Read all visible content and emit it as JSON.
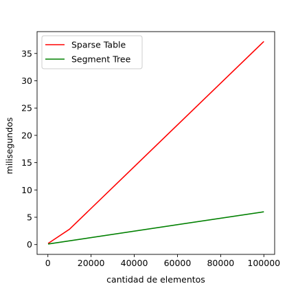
{
  "chart_data": {
    "type": "line",
    "title": "",
    "xlabel": "cantidad de elementos",
    "ylabel": "milisegundos",
    "xlim": [
      -5000,
      105000
    ],
    "ylim": [
      -1.8,
      39.0
    ],
    "xticks": [
      0,
      20000,
      40000,
      60000,
      80000,
      100000
    ],
    "yticks": [
      0,
      5,
      10,
      15,
      20,
      25,
      30,
      35
    ],
    "grid": false,
    "legend_position": "upper left",
    "series": [
      {
        "name": "Sparse Table",
        "color": "#ff0000",
        "x": [
          100,
          10000,
          100000
        ],
        "y": [
          0.2,
          2.8,
          37.2
        ]
      },
      {
        "name": "Segment Tree",
        "color": "#008000",
        "x": [
          100,
          100000
        ],
        "y": [
          0.1,
          6.0
        ]
      }
    ]
  }
}
